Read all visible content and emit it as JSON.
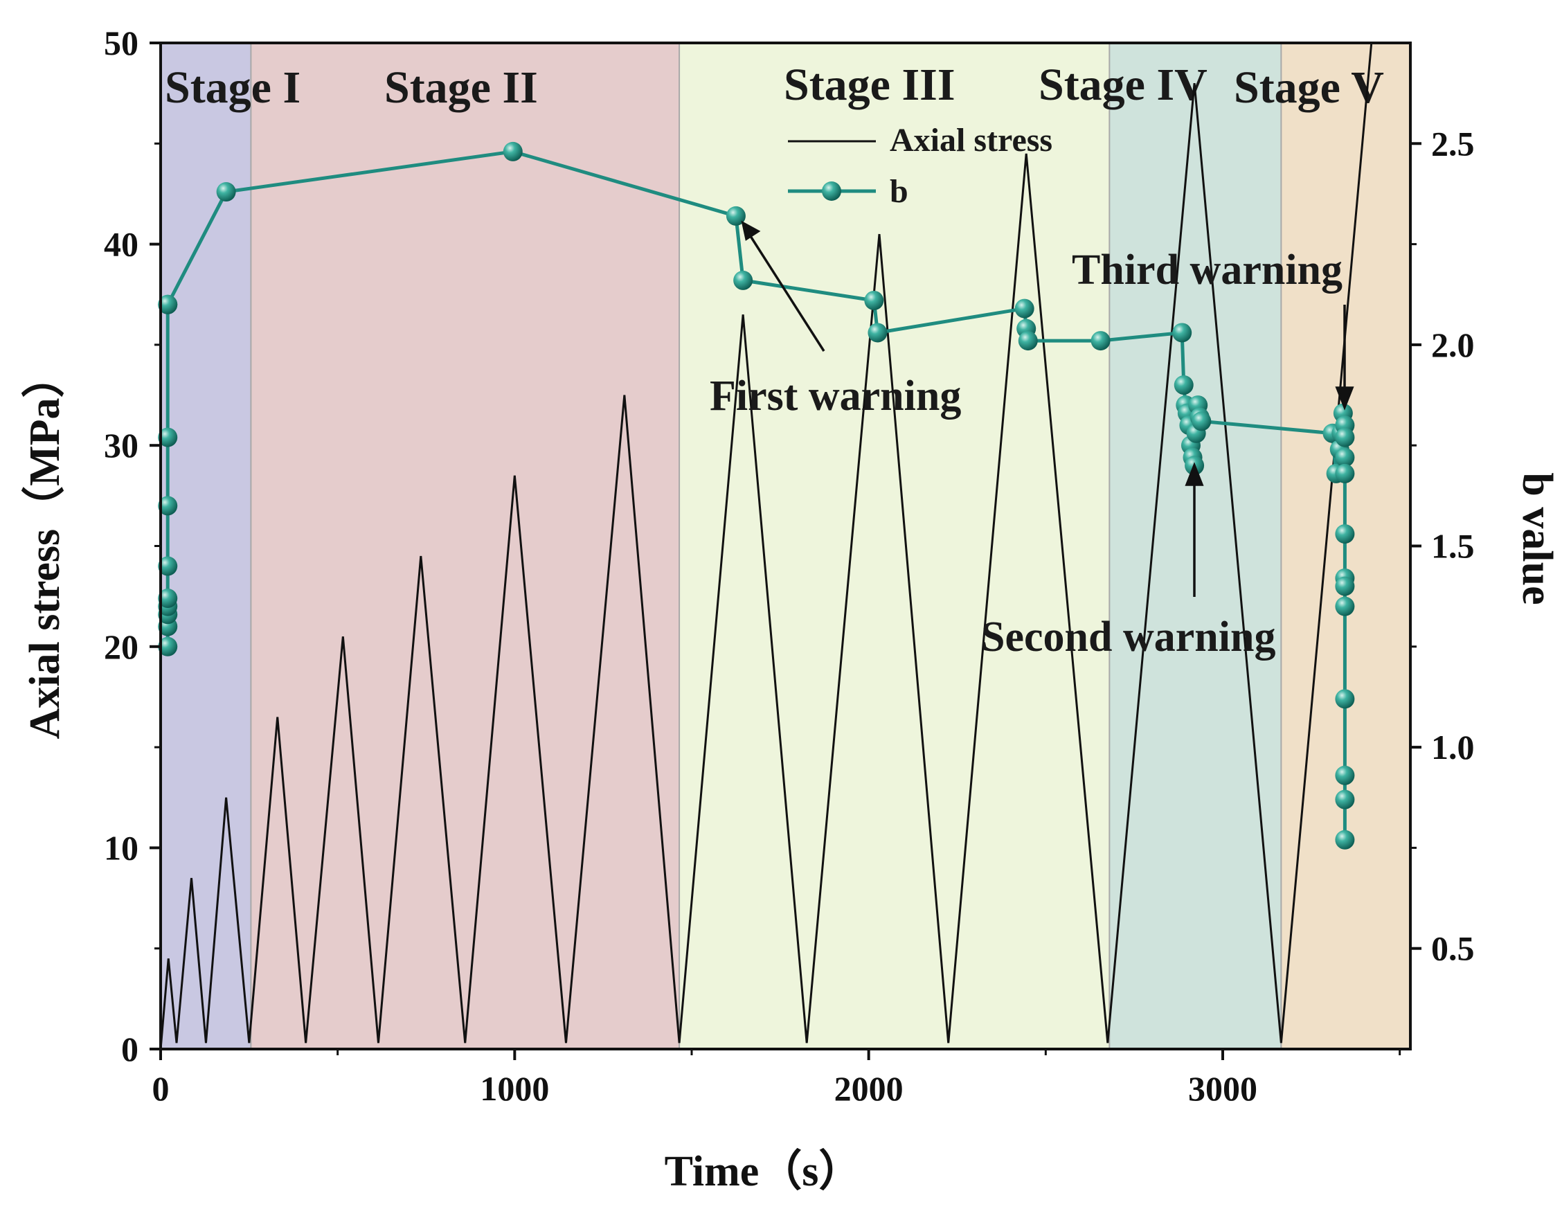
{
  "chart_data": {
    "type": "line",
    "xlabel": "Time（s）",
    "ylabel": "Axial stress（MPa）",
    "y2label": "b value",
    "xlim": [
      0,
      3530
    ],
    "ylim": [
      0,
      50
    ],
    "y2lim": [
      0.25,
      2.75
    ],
    "xticks": [
      0,
      1000,
      2000,
      3000
    ],
    "yticks": [
      0,
      10,
      20,
      30,
      40,
      50
    ],
    "y2ticks": [
      0.5,
      1.0,
      1.5,
      2.0,
      2.5
    ],
    "xtick_labels": [
      "0",
      "1000",
      "2000",
      "3000"
    ],
    "ytick_labels": [
      "0",
      "10",
      "20",
      "30",
      "40",
      "50"
    ],
    "y2tick_labels": [
      "0.5",
      "1.0",
      "1.5",
      "2.0",
      "2.5"
    ],
    "stages": [
      {
        "label": "Stage I",
        "start": 0,
        "end": 255,
        "color": "#c9c8e2"
      },
      {
        "label": "Stage II",
        "start": 255,
        "end": 1465,
        "color": "#e5cccc"
      },
      {
        "label": "Stage III",
        "start": 1465,
        "end": 2680,
        "color": "#eef5dc"
      },
      {
        "label": "Stage IV",
        "start": 2680,
        "end": 3165,
        "color": "#cfe3dc"
      },
      {
        "label": "Stage V",
        "start": 3165,
        "end": 3530,
        "color": "#f0e0c8"
      }
    ],
    "legend": {
      "position": "top-right",
      "items": [
        {
          "label": "Axial stress",
          "color": "#111111",
          "marker": "none"
        },
        {
          "label": "b",
          "color": "#1f8c80",
          "marker": "sphere"
        }
      ]
    },
    "series": [
      {
        "name": "Axial stress",
        "axis": "left",
        "color": "#111111",
        "x": [
          0,
          22,
          45,
          87,
          128,
          185,
          250,
          330,
          410,
          515,
          615,
          735,
          860,
          1000,
          1145,
          1310,
          1465,
          1645,
          1825,
          2030,
          2225,
          2445,
          2675,
          2920,
          3165,
          3420
        ],
        "y": [
          0,
          4.5,
          0.3,
          8.5,
          0.3,
          12.5,
          0.3,
          16.5,
          0.3,
          20.5,
          0.3,
          24.5,
          0.3,
          28.5,
          0.3,
          32.5,
          0.3,
          36.5,
          0.3,
          40.5,
          0.3,
          44.5,
          0.3,
          48,
          0.3,
          50
        ]
      },
      {
        "name": "b",
        "axis": "right",
        "color": "#1f8c80",
        "x": [
          20,
          20,
          20,
          20,
          20,
          20,
          20,
          20,
          20,
          20,
          185,
          995,
          1625,
          1645,
          2015,
          2025,
          2440,
          2445,
          2450,
          2655,
          2885,
          2890,
          2895,
          2900,
          2905,
          2910,
          2915,
          2920,
          2925,
          2930,
          2935,
          2940,
          3310,
          3320,
          3330,
          3335,
          3340,
          3345,
          3345,
          3345,
          3345,
          3345,
          3345,
          3345,
          3345,
          3345,
          3345,
          3345,
          3345
        ],
        "y": [
          1.25,
          1.3,
          1.33,
          1.35,
          1.37,
          1.45,
          1.6,
          1.77,
          2.1,
          2.1,
          2.38,
          2.48,
          2.32,
          2.16,
          2.11,
          2.03,
          2.09,
          2.04,
          2.01,
          2.01,
          2.03,
          1.9,
          1.85,
          1.83,
          1.8,
          1.75,
          1.72,
          1.7,
          1.78,
          1.85,
          1.82,
          1.81,
          1.78,
          1.68,
          1.74,
          1.78,
          1.83,
          1.8,
          1.77,
          1.72,
          1.68,
          1.53,
          1.42,
          1.4,
          1.35,
          1.12,
          0.93,
          0.87,
          0.77
        ]
      }
    ],
    "annotations": [
      {
        "text": "First warning",
        "x": 1620,
        "y_right": 2.29
      },
      {
        "text": "Second warning",
        "x": 2910,
        "y_right": 1.72
      },
      {
        "text": "Third warning",
        "x": 3330,
        "y_right": 1.85
      }
    ]
  }
}
